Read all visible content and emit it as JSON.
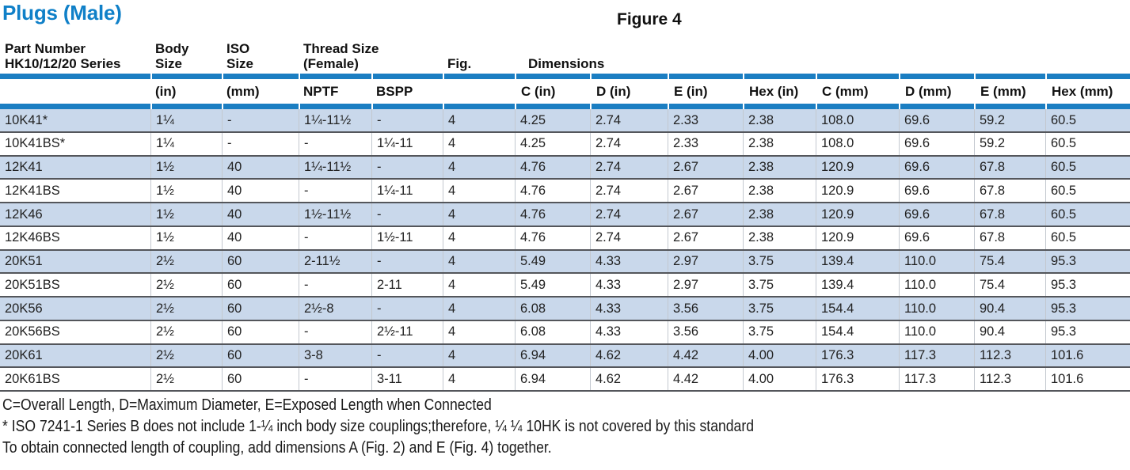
{
  "title": "Plugs (Male)",
  "figure_label": "Figure 4",
  "colors": {
    "accent_blue": "#1080c8",
    "bar_blue": "#1b7ec2",
    "row_shade": "#c9d8eb",
    "row_line": "#54565b"
  },
  "table": {
    "group_headers": {
      "part_line1": "Part Number",
      "part_line2": "HK10/12/20 Series",
      "body_line1": "Body",
      "body_line2": "Size",
      "iso_line1": "ISO",
      "iso_line2": "Size",
      "thread_line1": "Thread Size",
      "thread_line2": "(Female)",
      "fig": "Fig.",
      "dimensions": "Dimensions"
    },
    "sub_headers": [
      "",
      "(in)",
      "(mm)",
      "NPTF",
      "BSPP",
      "",
      "C (in)",
      "D (in)",
      "E (in)",
      "Hex (in)",
      "C (mm)",
      "D (mm)",
      "E (mm)",
      "Hex (mm)"
    ],
    "rows": [
      [
        "10K41*",
        "1¼",
        "-",
        "1¼-11½",
        "-",
        "4",
        "4.25",
        "2.74",
        "2.33",
        "2.38",
        "108.0",
        "69.6",
        "59.2",
        "60.5"
      ],
      [
        "10K41BS*",
        "1¼",
        "-",
        "-",
        "1¼-11",
        "4",
        "4.25",
        "2.74",
        "2.33",
        "2.38",
        "108.0",
        "69.6",
        "59.2",
        "60.5"
      ],
      [
        "12K41",
        "1½",
        "40",
        "1¼-11½",
        "-",
        "4",
        "4.76",
        "2.74",
        "2.67",
        "2.38",
        "120.9",
        "69.6",
        "67.8",
        "60.5"
      ],
      [
        "12K41BS",
        "1½",
        "40",
        "-",
        "1¼-11",
        "4",
        "4.76",
        "2.74",
        "2.67",
        "2.38",
        "120.9",
        "69.6",
        "67.8",
        "60.5"
      ],
      [
        "12K46",
        "1½",
        "40",
        "1½-11½",
        "-",
        "4",
        "4.76",
        "2.74",
        "2.67",
        "2.38",
        "120.9",
        "69.6",
        "67.8",
        "60.5"
      ],
      [
        "12K46BS",
        "1½",
        "40",
        "-",
        "1½-11",
        "4",
        "4.76",
        "2.74",
        "2.67",
        "2.38",
        "120.9",
        "69.6",
        "67.8",
        "60.5"
      ],
      [
        "20K51",
        "2½",
        "60",
        "2-11½",
        "-",
        "4",
        "5.49",
        "4.33",
        "2.97",
        "3.75",
        "139.4",
        "110.0",
        "75.4",
        "95.3"
      ],
      [
        "20K51BS",
        "2½",
        "60",
        "-",
        "2-11",
        "4",
        "5.49",
        "4.33",
        "2.97",
        "3.75",
        "139.4",
        "110.0",
        "75.4",
        "95.3"
      ],
      [
        "20K56",
        "2½",
        "60",
        "2½-8",
        "-",
        "4",
        "6.08",
        "4.33",
        "3.56",
        "3.75",
        "154.4",
        "110.0",
        "90.4",
        "95.3"
      ],
      [
        "20K56BS",
        "2½",
        "60",
        "-",
        "2½-11",
        "4",
        "6.08",
        "4.33",
        "3.56",
        "3.75",
        "154.4",
        "110.0",
        "90.4",
        "95.3"
      ],
      [
        "20K61",
        "2½",
        "60",
        "3-8",
        "-",
        "4",
        "6.94",
        "4.62",
        "4.42",
        "4.00",
        "176.3",
        "117.3",
        "112.3",
        "101.6"
      ],
      [
        "20K61BS",
        "2½",
        "60",
        "-",
        "3-11",
        "4",
        "6.94",
        "4.62",
        "4.42",
        "4.00",
        "176.3",
        "117.3",
        "112.3",
        "101.6"
      ]
    ]
  },
  "notes": [
    "C=Overall Length, D=Maximum Diameter, E=Exposed Length when Connected",
    "* ISO 7241-1 Series B does not include 1-¼ inch body size couplings;therefore, ¼ ¼ 10HK is not covered by this standard",
    "To obtain connected length of coupling, add dimensions A (Fig. 2) and E (Fig. 4) together."
  ]
}
